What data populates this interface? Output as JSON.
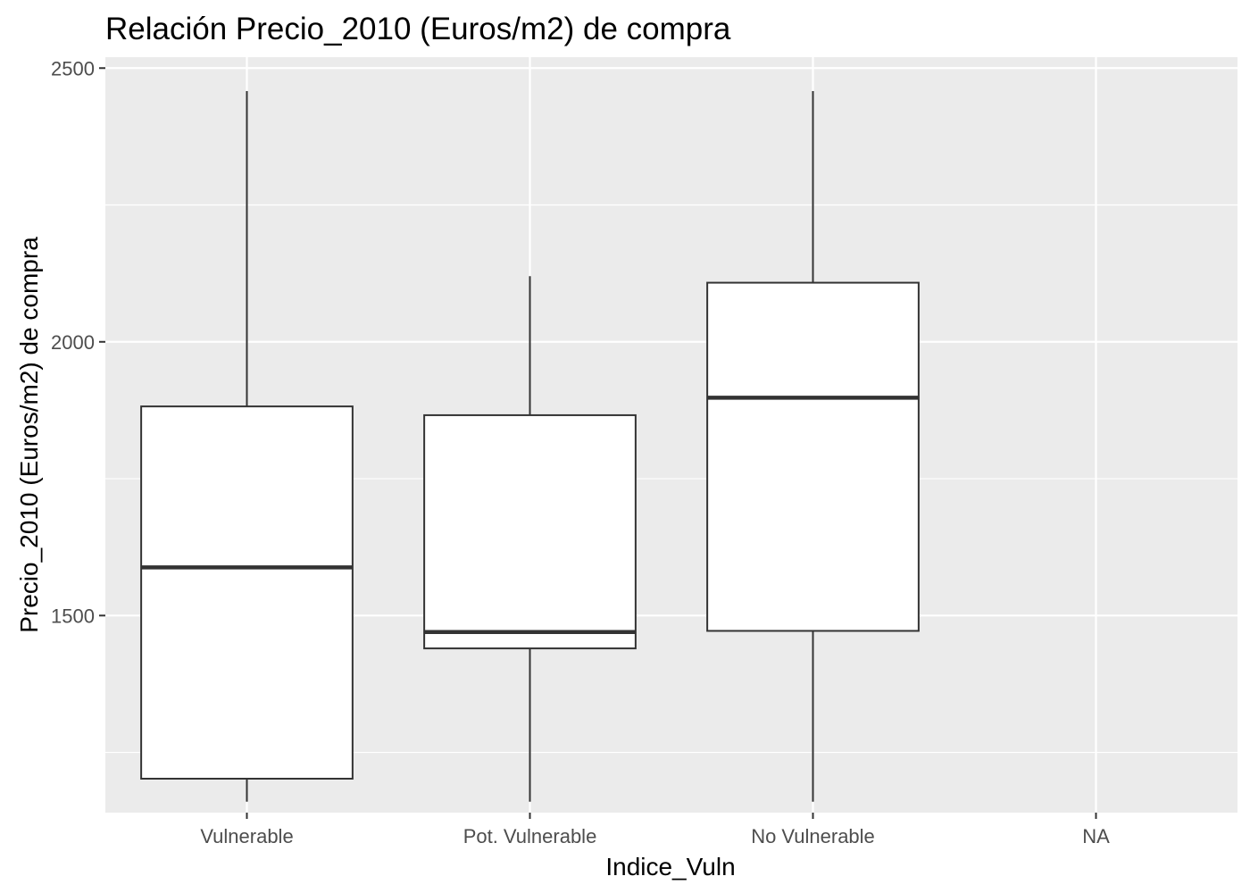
{
  "chart_data": {
    "type": "boxplot",
    "title": "Relación  Precio_2010 (Euros/m2) de compra",
    "xlabel": "Indice_Vuln",
    "ylabel": "Precio_2010 (Euros/m2) de compra",
    "categories": [
      "Vulnerable",
      "Pot. Vulnerable",
      "No Vulnerable",
      "NA"
    ],
    "ylim": [
      1140,
      2520
    ],
    "y_ticks": [
      1500,
      2000,
      2500
    ],
    "y_minor_ticks": [
      1250,
      1750,
      2250
    ],
    "grid": true,
    "boxes": [
      {
        "category": "Vulnerable",
        "whisker_low": 1160,
        "q1": 1202,
        "median": 1588,
        "q3": 1882,
        "whisker_high": 2458
      },
      {
        "category": "Pot. Vulnerable",
        "whisker_low": 1160,
        "q1": 1440,
        "median": 1470,
        "q3": 1866,
        "whisker_high": 2120
      },
      {
        "category": "No Vulnerable",
        "whisker_low": 1160,
        "q1": 1472,
        "median": 1898,
        "q3": 2108,
        "whisker_high": 2458
      },
      {
        "category": "NA"
      }
    ],
    "colors": {
      "panel_background": "#ebebeb",
      "grid": "#ffffff",
      "box_fill": "#ffffff",
      "box_stroke": "#333333",
      "tick_label": "#4d4d4d"
    }
  }
}
